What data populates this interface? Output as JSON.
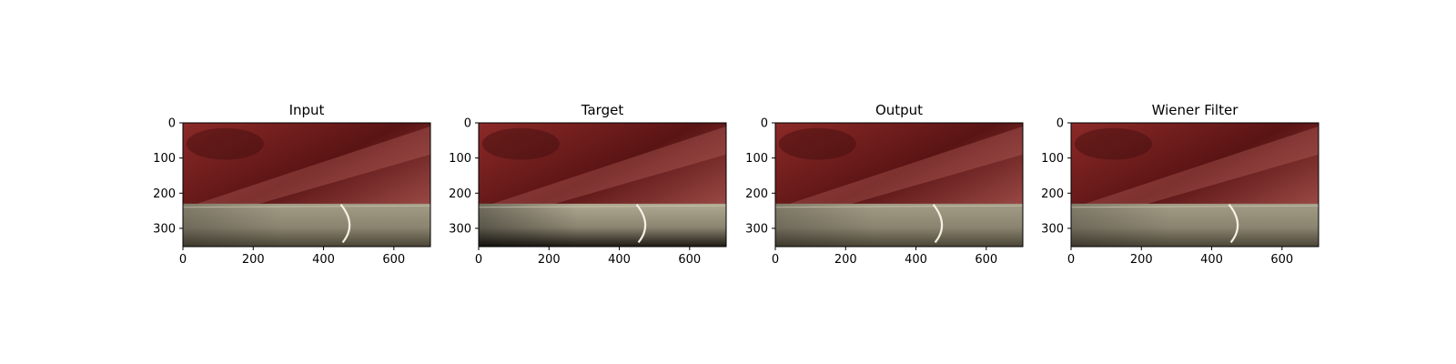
{
  "chart_data": [
    {
      "type": "image",
      "title": "Input",
      "xlim": [
        0,
        704
      ],
      "ylim": [
        352,
        0
      ],
      "xticks": [
        0,
        200,
        400,
        600
      ],
      "yticks": [
        0,
        100,
        200,
        300
      ],
      "variant": "input"
    },
    {
      "type": "image",
      "title": "Target",
      "xlim": [
        0,
        704
      ],
      "ylim": [
        352,
        0
      ],
      "xticks": [
        0,
        200,
        400,
        600
      ],
      "yticks": [
        0,
        100,
        200,
        300
      ],
      "variant": "target"
    },
    {
      "type": "image",
      "title": "Output",
      "xlim": [
        0,
        704
      ],
      "ylim": [
        352,
        0
      ],
      "xticks": [
        0,
        200,
        400,
        600
      ],
      "yticks": [
        0,
        100,
        200,
        300
      ],
      "variant": "output"
    },
    {
      "type": "image",
      "title": "Wiener Filter",
      "xlim": [
        0,
        704
      ],
      "ylim": [
        352,
        0
      ],
      "xticks": [
        0,
        200,
        400,
        600
      ],
      "yticks": [
        0,
        100,
        200,
        300
      ],
      "variant": "wiener"
    }
  ],
  "colors": {
    "tissue_dark": "#5a1414",
    "tissue_mid": "#8c2a28",
    "tissue_light": "#b5605a",
    "tool_light": "#a39c86",
    "tool_dark": "#4a4436"
  }
}
